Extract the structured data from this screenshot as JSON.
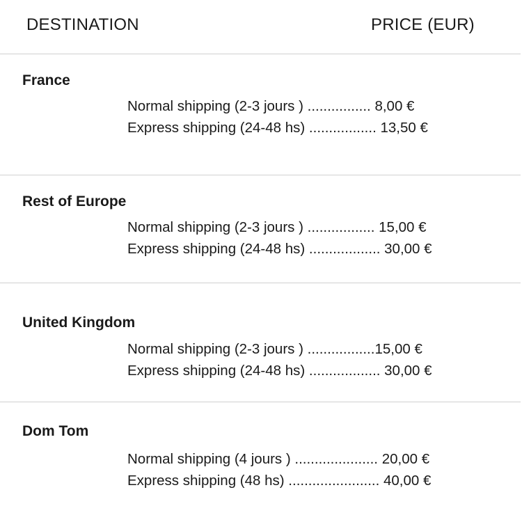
{
  "header": {
    "destination": "DESTINATION",
    "price": "PRICE (EUR)"
  },
  "sections": [
    {
      "title": "France",
      "lines": [
        "Normal shipping (2-3 jours ) ................ 8,00 €",
        "Express shipping (24-48 hs) ................. 13,50 €"
      ]
    },
    {
      "title": "Rest of Europe",
      "lines": [
        "Normal shipping (2-3 jours ) ................. 15,00 €",
        "Express shipping (24-48 hs) .................. 30,00 €"
      ]
    },
    {
      "title": "United Kingdom",
      "lines": [
        "Normal shipping (2-3 jours ) .................15,00 €",
        "Express shipping (24-48 hs) .................. 30,00 €"
      ]
    },
    {
      "title": "Dom Tom",
      "lines": [
        "Normal shipping (4 jours ) ..................... 20,00 €",
        "Express shipping (48 hs) ....................... 40,00 €"
      ]
    }
  ]
}
